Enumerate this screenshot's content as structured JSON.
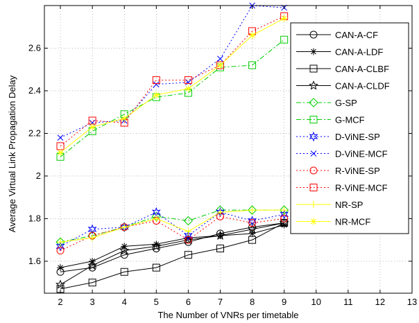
{
  "chart_data": {
    "type": "line",
    "title": "",
    "xlabel": "The Number of VNRs per timetable",
    "ylabel": "Average Virtual Link Propagation Delay",
    "xlim": [
      1.5,
      13
    ],
    "ylim": [
      1.45,
      2.8
    ],
    "xticks": [
      2,
      3,
      4,
      5,
      6,
      7,
      8,
      9,
      10,
      11,
      12,
      13
    ],
    "yticks": [
      1.6,
      1.8,
      2,
      2.2,
      2.4,
      2.6
    ],
    "grid": true,
    "legend_position": "right",
    "x": [
      2,
      3,
      4,
      5,
      6,
      7,
      8,
      9
    ],
    "series": [
      {
        "name": "CAN-A-CF",
        "color": "#000000",
        "dash": "solid",
        "marker": "circle",
        "values": [
          1.55,
          1.57,
          1.63,
          1.66,
          1.69,
          1.73,
          1.76,
          1.78
        ]
      },
      {
        "name": "CAN-A-LDF",
        "color": "#000000",
        "dash": "solid",
        "marker": "asterisk",
        "values": [
          1.57,
          1.6,
          1.67,
          1.68,
          1.71,
          1.72,
          1.73,
          1.77
        ]
      },
      {
        "name": "CAN-A-CLBF",
        "color": "#000000",
        "dash": "solid",
        "marker": "square",
        "values": [
          1.47,
          1.5,
          1.55,
          1.57,
          1.63,
          1.66,
          1.7,
          1.78
        ]
      },
      {
        "name": "CAN-A-CLDF",
        "color": "#000000",
        "dash": "solid",
        "marker": "star",
        "values": [
          1.49,
          1.58,
          1.65,
          1.67,
          1.7,
          1.72,
          1.75,
          1.78
        ]
      },
      {
        "name": "G-SP",
        "color": "#00cc00",
        "dash": "dashdot",
        "marker": "diamond",
        "values": [
          1.69,
          1.72,
          1.76,
          1.81,
          1.79,
          1.84,
          1.84,
          1.84
        ]
      },
      {
        "name": "G-MCF",
        "color": "#00cc00",
        "dash": "dashdot",
        "marker": "square",
        "values": [
          2.09,
          2.21,
          2.29,
          2.37,
          2.39,
          2.51,
          2.52,
          2.64
        ]
      },
      {
        "name": "D-ViNE-SP",
        "color": "#0000ff",
        "dash": "dotted",
        "marker": "hexagram",
        "values": [
          1.67,
          1.75,
          1.76,
          1.83,
          1.72,
          1.83,
          1.79,
          1.82
        ]
      },
      {
        "name": "D-ViNE-MCF",
        "color": "#0000ff",
        "dash": "dotted",
        "marker": "x",
        "values": [
          2.18,
          2.25,
          2.26,
          2.43,
          2.44,
          2.55,
          2.8,
          2.79
        ]
      },
      {
        "name": "R-ViNE-SP",
        "color": "#ff0000",
        "dash": "dotted",
        "marker": "circle",
        "values": [
          1.65,
          1.72,
          1.76,
          1.79,
          1.7,
          1.81,
          1.78,
          1.8
        ]
      },
      {
        "name": "R-ViNE-MCF",
        "color": "#ff0000",
        "dash": "dotted",
        "marker": "square",
        "values": [
          2.14,
          2.26,
          2.25,
          2.45,
          2.45,
          2.52,
          2.68,
          2.75
        ]
      },
      {
        "name": "NR-SP",
        "color": "#ffff00",
        "dash": "solid",
        "marker": "plus",
        "values": [
          1.69,
          1.71,
          1.76,
          1.8,
          1.74,
          1.83,
          1.84,
          1.84
        ]
      },
      {
        "name": "NR-MCF",
        "color": "#ffff00",
        "dash": "solid",
        "marker": "asterisk",
        "values": [
          2.11,
          2.23,
          2.27,
          2.38,
          2.41,
          2.52,
          2.66,
          2.74
        ]
      }
    ]
  }
}
